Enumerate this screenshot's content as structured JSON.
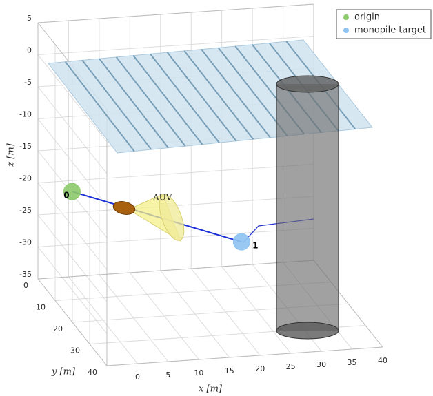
{
  "chart_data": {
    "type": "scatter3d",
    "xlabel": "x [m]",
    "ylabel": "y [m]",
    "zlabel": "z [m]",
    "xlim": [
      -5,
      40
    ],
    "ylim": [
      0,
      40
    ],
    "zlim": [
      -35,
      5
    ],
    "xticks": [
      0,
      5,
      10,
      15,
      20,
      25,
      30,
      35,
      40
    ],
    "yticks": [
      0,
      10,
      20,
      30,
      40
    ],
    "zticks": [
      -35,
      -30,
      -25,
      -20,
      -15,
      -10,
      -5,
      0,
      5
    ],
    "grid": true,
    "legend": "upper right",
    "series": [
      {
        "name": "origin",
        "color": "#8cc96a",
        "x": [
          0
        ],
        "y": [
          2
        ],
        "z": [
          -21
        ],
        "labels": [
          "0"
        ]
      },
      {
        "name": "monopile target",
        "color": "#8ec3f2",
        "x": [
          24
        ],
        "y": [
          15
        ],
        "z": [
          -26
        ],
        "labels": [
          "1"
        ]
      }
    ],
    "annotations": [
      {
        "text": "AUV"
      }
    ]
  }
}
